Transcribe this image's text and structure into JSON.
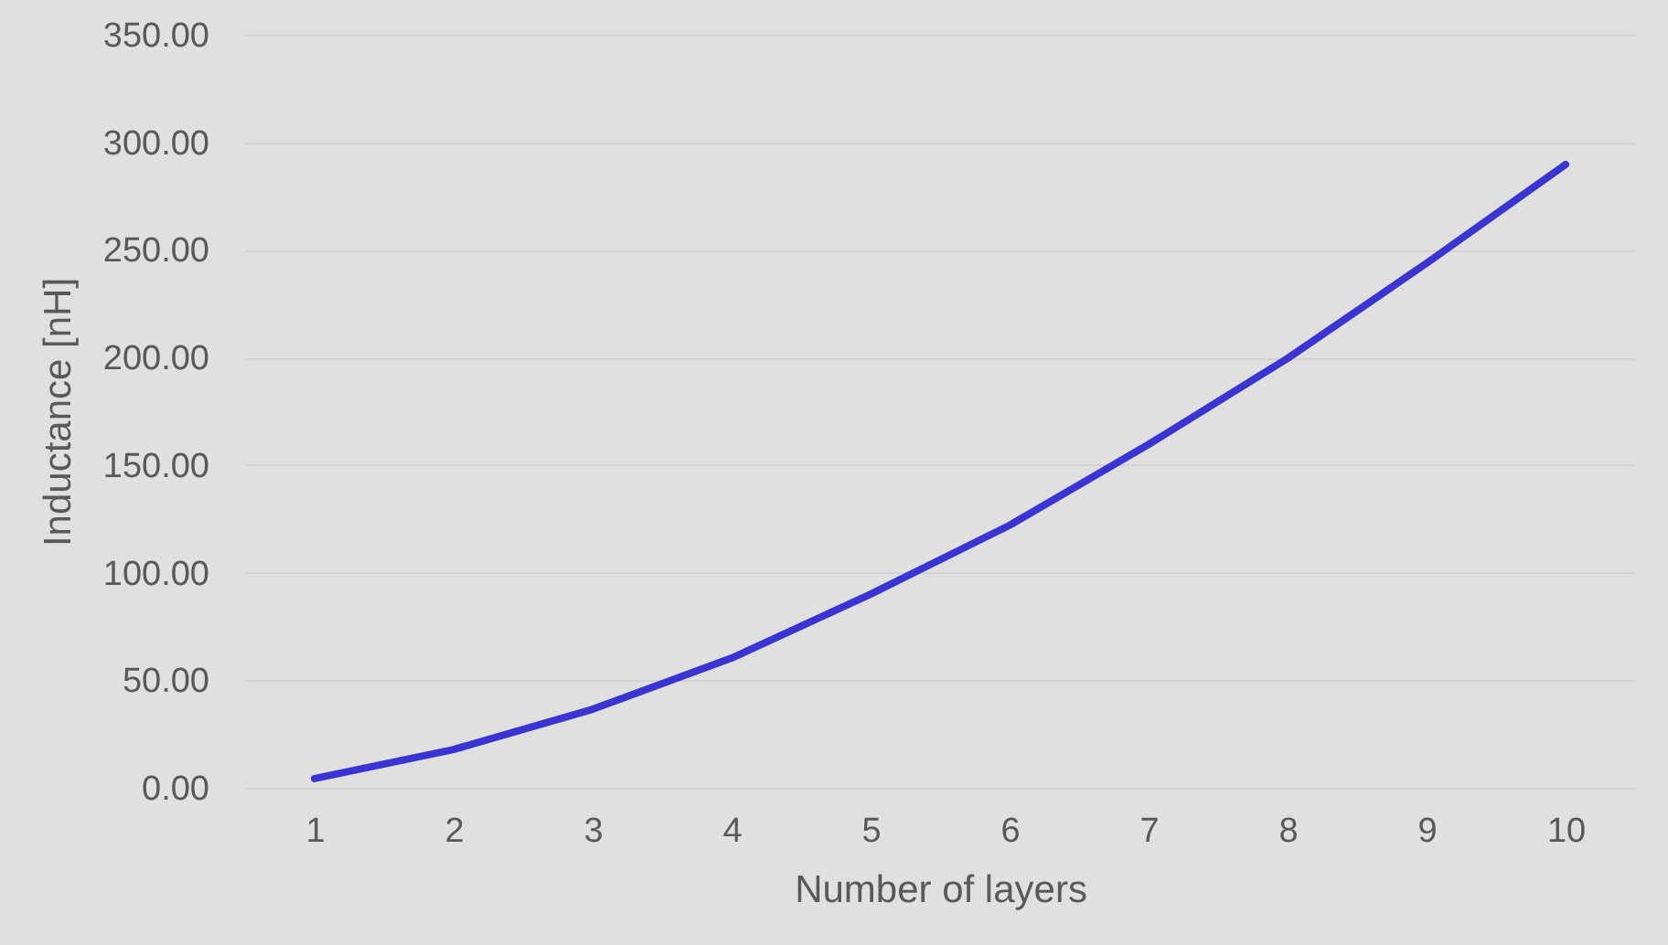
{
  "chart_data": {
    "type": "line",
    "xlabel": "Number of layers",
    "ylabel": "Inductance [nH]",
    "categories": [
      "1",
      "2",
      "3",
      "4",
      "5",
      "6",
      "7",
      "8",
      "9",
      "10"
    ],
    "series": [
      {
        "color": "#3a34d2",
        "values": [
          4.3,
          17.8,
          36.5,
          60.3,
          90,
          122,
          159.6,
          199.6,
          243.8,
          289.7
        ]
      }
    ],
    "ylim": [
      0,
      350
    ],
    "yticks": [
      {
        "value": 0,
        "label": "0.00"
      },
      {
        "value": 50,
        "label": "50.00"
      },
      {
        "value": 100,
        "label": "100.00"
      },
      {
        "value": 150,
        "label": "150.00"
      },
      {
        "value": 200,
        "label": "200.00"
      },
      {
        "value": 250,
        "label": "250.00"
      },
      {
        "value": 300,
        "label": "300.00"
      },
      {
        "value": 350,
        "label": "350.00"
      }
    ],
    "grid": "y",
    "marker": "none",
    "line_style": "solid",
    "legend": false
  }
}
